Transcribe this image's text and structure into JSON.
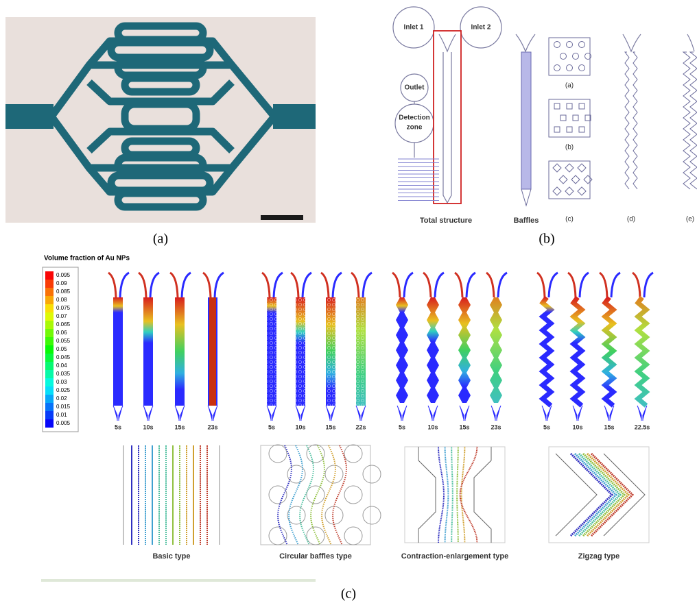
{
  "panel_a": {
    "label": "(a)"
  },
  "panel_b": {
    "label": "(b)",
    "inlet_1": "Inlet 1",
    "inlet_2": "Inlet 2",
    "outlet": "Outlet",
    "detection_zone": [
      "Detection",
      "zone"
    ],
    "total_structure": "Total structure",
    "baffles": "Baffles",
    "sub_labels": [
      "(a)",
      "(b)",
      "(c)",
      "(d)",
      "(e)"
    ]
  },
  "panel_c": {
    "label": "(c)",
    "colorbar_title": "Volume fraction of Au NPs",
    "colorbar_labels": [
      "0.095",
      "0.09",
      "0.085",
      "0.08",
      "0.075",
      "0.07",
      "0.065",
      "0.06",
      "0.055",
      "0.05",
      "0.045",
      "0.04",
      "0.035",
      "0.03",
      "0.025",
      "0.02",
      "0.015",
      "0.01",
      "0.005"
    ],
    "groups": [
      {
        "times": [
          "5s",
          "10s",
          "15s",
          "23s"
        ],
        "type_label": "Basic type"
      },
      {
        "times": [
          "5s",
          "10s",
          "15s",
          "22s"
        ],
        "type_label": "Circular baffles type"
      },
      {
        "times": [
          "5s",
          "10s",
          "15s",
          "23s"
        ],
        "type_label": "Contraction-enlargement type"
      },
      {
        "times": [
          "5s",
          "10s",
          "15s",
          "22.5s"
        ],
        "type_label": "Zigzag type"
      }
    ]
  }
}
